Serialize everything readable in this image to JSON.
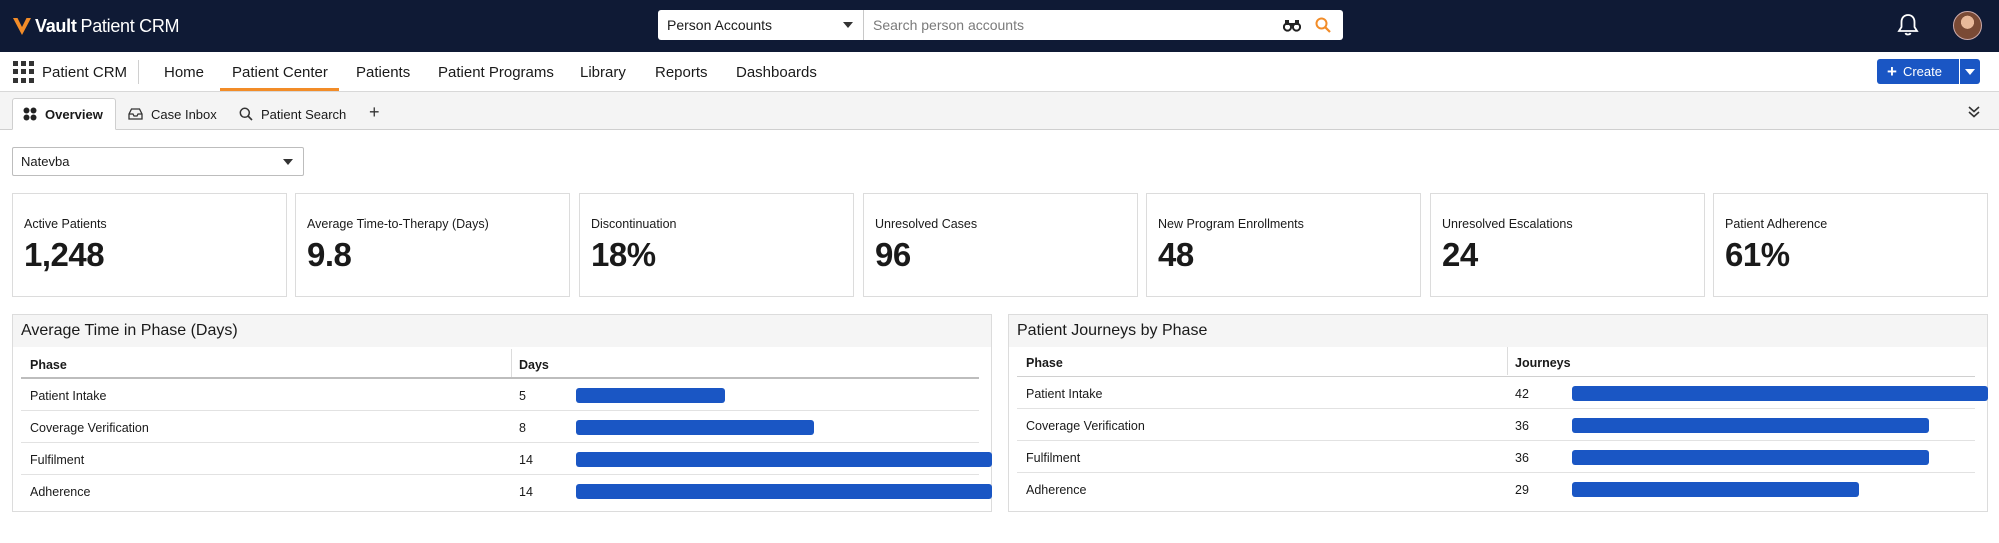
{
  "brand": {
    "name_bold": "Vault",
    "name_rest": "Patient CRM"
  },
  "search": {
    "scope": "Person Accounts",
    "placeholder": "Search person accounts"
  },
  "appnav": {
    "app_name": "Patient CRM",
    "tabs": [
      {
        "label": "Home"
      },
      {
        "label": "Patient Center"
      },
      {
        "label": "Patients"
      },
      {
        "label": "Patient Programs"
      },
      {
        "label": "Library"
      },
      {
        "label": "Reports"
      },
      {
        "label": "Dashboards"
      }
    ],
    "active_tab": "Patient Center",
    "create_label": "Create"
  },
  "subtabs": [
    {
      "label": "Overview",
      "icon": "grid-icon"
    },
    {
      "label": "Case Inbox",
      "icon": "inbox-icon"
    },
    {
      "label": "Patient Search",
      "icon": "search-icon"
    }
  ],
  "filter": {
    "value": "Natevba"
  },
  "kpis": [
    {
      "label": "Active Patients",
      "value": "1,248"
    },
    {
      "label": "Average Time-to-Therapy (Days)",
      "value": "9.8"
    },
    {
      "label": "Discontinuation",
      "value": "18%"
    },
    {
      "label": "Unresolved Cases",
      "value": "96"
    },
    {
      "label": "New Program Enrollments",
      "value": "48"
    },
    {
      "label": "Unresolved Escalations",
      "value": "24"
    },
    {
      "label": "Patient Adherence",
      "value": "61%"
    }
  ],
  "phase_time": {
    "title": "Average Time in Phase (Days)",
    "col_phase": "Phase",
    "col_value": "Days",
    "max": 14,
    "rows": [
      {
        "phase": "Patient Intake",
        "value": "5"
      },
      {
        "phase": "Coverage Verification",
        "value": "8"
      },
      {
        "phase": "Fulfilment",
        "value": "14"
      },
      {
        "phase": "Adherence",
        "value": "14"
      }
    ]
  },
  "journeys": {
    "title": "Patient Journeys by Phase",
    "col_phase": "Phase",
    "col_value": "Journeys",
    "max": 42,
    "rows": [
      {
        "phase": "Patient Intake",
        "value": "42"
      },
      {
        "phase": "Coverage Verification",
        "value": "36"
      },
      {
        "phase": "Fulfilment",
        "value": "36"
      },
      {
        "phase": "Adherence",
        "value": "29"
      }
    ]
  },
  "colors": {
    "topbar": "#0f1a35",
    "accent": "#f28c28",
    "primary": "#1a56c4"
  }
}
